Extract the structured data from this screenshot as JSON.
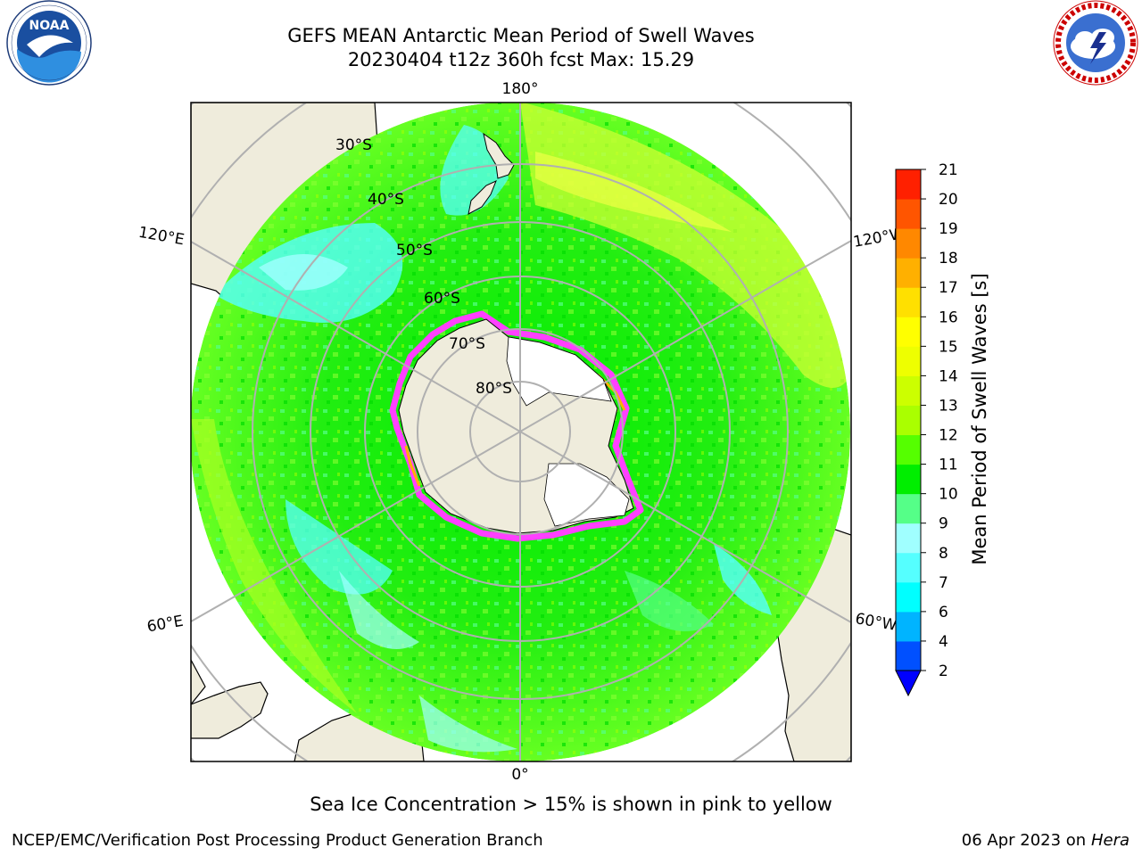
{
  "header": {
    "title_line1": "GEFS MEAN Antarctic Mean Period of Swell Waves",
    "title_line2": "20230404 t12z 360h fcst   Max: 15.29"
  },
  "logos": {
    "noaa_text": "NOAA",
    "noaa_ring_text": "NATIONAL OCEANIC AND ATMOSPHERIC ADMINISTRATION · U.S. DEPARTMENT OF COMMERCE",
    "nws_ring_text": "NATIONAL WEATHER SERVICE"
  },
  "map": {
    "projection": "south polar stereographic",
    "longitude_labels": {
      "top": "180°",
      "bottom": "0°",
      "left_upper": "120°E",
      "right_upper": "120°W",
      "left_lower": "60°E",
      "right_lower": "60°W"
    },
    "latitude_labels": [
      "30°S",
      "40°S",
      "50°S",
      "60°S",
      "70°S",
      "80°S"
    ],
    "colors": {
      "land": "#efecdc",
      "ice_shelf": "#ffffff",
      "grid": "#b0b0b0",
      "sea_ice_pink": "#ff40ff",
      "sea_ice_orange": "#ffb000"
    }
  },
  "colorbar": {
    "label": "Mean Period of Swell Waves [s]",
    "ticks": [
      "2",
      "4",
      "6",
      "7",
      "8",
      "9",
      "10",
      "11",
      "12",
      "13",
      "14",
      "15",
      "16",
      "17",
      "18",
      "19",
      "20",
      "21"
    ],
    "colors": [
      "#0050ff",
      "#00b4ff",
      "#00ffff",
      "#55ffff",
      "#a0ffff",
      "#55ff88",
      "#00ee00",
      "#55ff00",
      "#aaff00",
      "#ccff00",
      "#eeff00",
      "#ffff00",
      "#ffe000",
      "#ffb000",
      "#ff8800",
      "#ff5500",
      "#ff2000"
    ],
    "extend_min_color": "#0000ff"
  },
  "footer": {
    "note": "Sea Ice Concentration > 15% is shown in pink to yellow",
    "left": "NCEP/EMC/Verification Post Processing Product Generation Branch",
    "right_date": "06 Apr 2023 on ",
    "right_host": "Hera"
  }
}
